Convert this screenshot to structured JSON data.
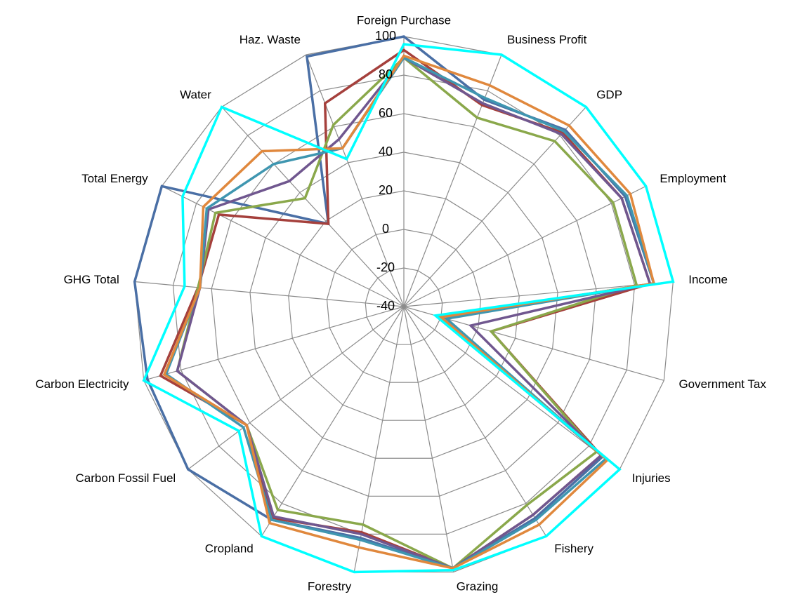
{
  "chart_data": {
    "type": "radar",
    "categories": [
      "Foreign Purchase",
      "Business Profit",
      "GDP",
      "Employment",
      "Income",
      "Government Tax",
      "Injuries",
      "Fishery",
      "Grazing",
      "Forestry",
      "Cropland",
      "Carbon Fossil Fuel",
      "Carbon Electricity",
      "GHG Total",
      "Total Energy",
      "Water",
      "Haz. Waste"
    ],
    "ylim": [
      -40,
      100
    ],
    "yticks": [
      -40,
      -20,
      0,
      20,
      40,
      60,
      80,
      100
    ],
    "grid": true,
    "series": [
      {
        "color": "#4a6fa5",
        "values": [
          100,
          75,
          84,
          88,
          90,
          -20,
          89,
          89,
          98,
          82,
          90,
          100,
          98,
          100,
          100,
          18,
          99
        ]
      },
      {
        "color": "#a5403c",
        "values": [
          93,
          72,
          82,
          86,
          88,
          7,
          88,
          87,
          98,
          79,
          89,
          62,
          91,
          67,
          67,
          18,
          73
        ]
      },
      {
        "color": "#8aa84b",
        "values": [
          89,
          65,
          76,
          81,
          81,
          7,
          85,
          81,
          98,
          75,
          84,
          62,
          82,
          67,
          69,
          36,
          61
        ]
      },
      {
        "color": "#70578f",
        "values": [
          89,
          73,
          81,
          86,
          88,
          -4,
          88,
          87,
          98,
          80,
          88,
          62,
          82,
          66,
          73,
          48,
          53
        ]
      },
      {
        "color": "#3f96b0",
        "values": [
          89,
          76,
          83,
          89,
          90,
          -17,
          91,
          90,
          98,
          83,
          90,
          64,
          88,
          66,
          74,
          60,
          48
        ]
      },
      {
        "color": "#e0883d",
        "values": [
          90,
          83,
          87,
          91,
          90,
          -20,
          92,
          93,
          98,
          87,
          92,
          62,
          89,
          66,
          76,
          69,
          48
        ]
      },
      {
        "color": "#00ffff",
        "values": [
          96,
          100,
          100,
          100,
          100,
          -23,
          100,
          100,
          99,
          100,
          100,
          67,
          100,
          74,
          88,
          100,
          42
        ]
      }
    ]
  }
}
